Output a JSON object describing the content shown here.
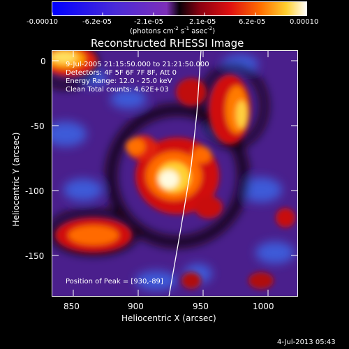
{
  "colorbar": {
    "ticks": [
      "-0.00010",
      "-6.2e-05",
      "-2.1e-05",
      "2.1e-05",
      "6.2e-05",
      "0.00010"
    ],
    "units": "(photons cm",
    "units_exp1": "-2",
    "units_mid": " s",
    "units_exp2": "-1",
    "units_end": " asec",
    "units_exp3": "-2",
    "units_close": ")"
  },
  "plot": {
    "title": "Reconstructed RHESSI Image",
    "xlabel": "Heliocentric X (arcsec)",
    "ylabel": "Heliocentric Y (arcsec)",
    "xticks": [
      "850",
      "900",
      "950",
      "1000"
    ],
    "yticks": [
      "0",
      "-50",
      "-100",
      "-150"
    ],
    "annotations": {
      "time": "9-Jul-2005 21:15:50.000 to 21:21:50.000",
      "detectors": "Detectors: 4F 5F 6F 7F 8F, Att 0",
      "energy": "Energy Range: 12.0 - 25.0 keV",
      "clean": "Clean    Total counts: 4.62E+03",
      "peak": "Position of Peak = [930,-89]"
    }
  },
  "footer": {
    "date": "4-Jul-2013 05:43"
  },
  "chart_data": {
    "type": "heatmap",
    "title": "Reconstructed RHESSI Image",
    "xlabel": "Heliocentric X (arcsec)",
    "ylabel": "Heliocentric Y (arcsec)",
    "xlim": [
      835,
      1025
    ],
    "ylim": [
      -182,
      8
    ],
    "peak": [
      930,
      -89
    ],
    "colorbar_range": [
      -0.0001,
      0.0001
    ]
  }
}
